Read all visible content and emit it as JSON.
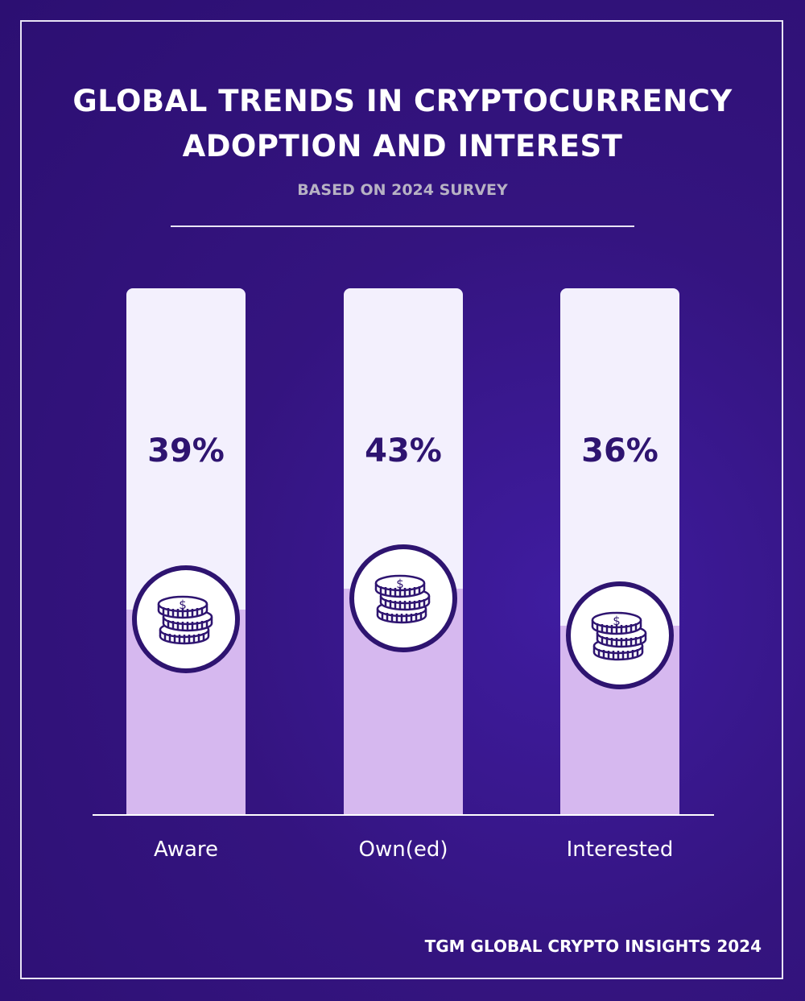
{
  "title_line1": "GLOBAL TRENDS IN CRYPTOCURRENCY",
  "title_line2": "ADOPTION AND INTEREST",
  "subtitle": "BASED ON 2024 SURVEY",
  "footer": "TGM GLOBAL CRYPTO INSIGHTS 2024",
  "colors": {
    "background": "#34147f",
    "bar_track": "#f3f0fd",
    "bar_fill": "#d6b8ef",
    "text_dark": "#2e1470"
  },
  "chart_data": {
    "type": "bar",
    "categories": [
      "Aware",
      "Own(ed)",
      "Interested"
    ],
    "values": [
      39,
      43,
      36
    ],
    "value_labels": [
      "39%",
      "43%",
      "36%"
    ],
    "ylim": [
      0,
      100
    ],
    "icon": "coin-stack-icon"
  }
}
